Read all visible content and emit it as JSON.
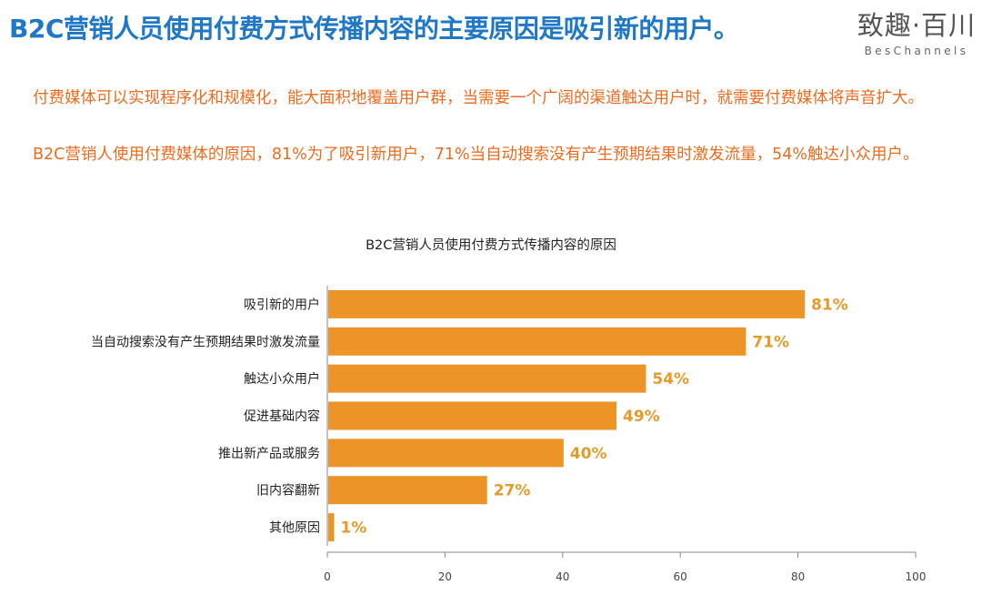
{
  "slide": {
    "title": "B2C营销人员使用付费方式传播内容的主要原因是吸引新的用户。",
    "brand_cn": "致趣·百川",
    "brand_en": "BesChannels",
    "paragraphs": [
      "付费媒体可以实现程序化和规模化，能大面积地覆盖用户群，当需要一个广阔的渠道触达用户时，就需要付费媒体将声音扩大。",
      "B2C营销人使用付费媒体的原因，81%为了吸引新用户，71%当自动搜索没有产生预期结果时激发流量，54%触达小众用户。"
    ]
  },
  "chart_data": {
    "type": "bar",
    "orientation": "horizontal",
    "title": "B2C营销人员使用付费方式传播内容的原因",
    "categories": [
      "吸引新的用户",
      "当自动搜索没有产生预期结果时激发流量",
      "触达小众用户",
      "促进基础内容",
      "推出新产品或服务",
      "旧内容翻新",
      "其他原因"
    ],
    "values": [
      81,
      71,
      54,
      49,
      40,
      27,
      1
    ],
    "value_labels": [
      "81%",
      "71%",
      "54%",
      "49%",
      "40%",
      "27%",
      "1%"
    ],
    "xlim": [
      0,
      100
    ],
    "xticks": [
      0,
      20,
      40,
      60,
      80,
      100
    ],
    "xlabel": "",
    "ylabel": "",
    "grid": false,
    "colors": {
      "bar": "#ec9428",
      "value_label": "#e59a2a",
      "axis": "#888888"
    }
  }
}
